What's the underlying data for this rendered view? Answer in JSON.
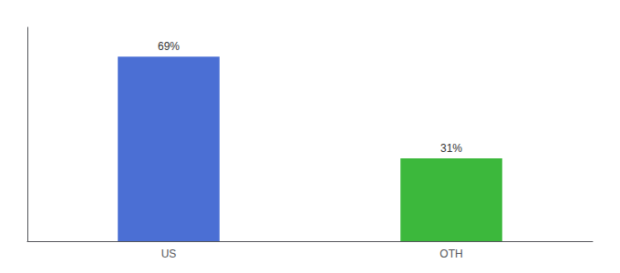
{
  "chart_data": {
    "type": "bar",
    "categories": [
      "US",
      "OTH"
    ],
    "values": [
      69,
      31
    ],
    "value_labels": [
      "69%",
      "31%"
    ],
    "colors": [
      "#4B6FD4",
      "#3CB83C"
    ],
    "ylim": [
      0,
      80
    ],
    "data_labels": true,
    "tick_labels": "x",
    "grid": false
  }
}
